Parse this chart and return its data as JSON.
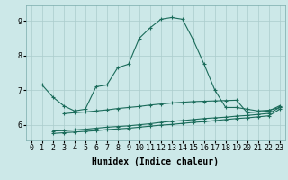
{
  "bg_color": "#cce8e8",
  "grid_color": "#aacccc",
  "line_color": "#1a6b5a",
  "xlabel": "Humidex (Indice chaleur)",
  "xlabel_fontsize": 7,
  "tick_fontsize": 6,
  "ylim": [
    5.55,
    9.45
  ],
  "xlim": [
    -0.5,
    23.5
  ],
  "yticks": [
    6,
    7,
    8,
    9
  ],
  "xticks": [
    0,
    1,
    2,
    3,
    4,
    5,
    6,
    7,
    8,
    9,
    10,
    11,
    12,
    13,
    14,
    15,
    16,
    17,
    18,
    19,
    20,
    21,
    22,
    23
  ],
  "series1_x": [
    1,
    2,
    3,
    4,
    5,
    6,
    7,
    8,
    9,
    10,
    11,
    12,
    13,
    14,
    15,
    16,
    17,
    18,
    19,
    20,
    21,
    22,
    23
  ],
  "series1_y": [
    7.15,
    6.8,
    6.55,
    6.4,
    6.45,
    7.1,
    7.15,
    7.65,
    7.75,
    8.5,
    8.8,
    9.05,
    9.1,
    9.05,
    8.45,
    7.75,
    7.0,
    6.5,
    6.5,
    6.45,
    6.4,
    6.42,
    6.5
  ],
  "series2_x": [
    3,
    4,
    5,
    6,
    7,
    8,
    9,
    10,
    11,
    12,
    13,
    14,
    15,
    16,
    17,
    18,
    19,
    20,
    21,
    22,
    23
  ],
  "series2_y": [
    6.32,
    6.35,
    6.37,
    6.4,
    6.43,
    6.47,
    6.5,
    6.53,
    6.57,
    6.6,
    6.63,
    6.65,
    6.67,
    6.68,
    6.69,
    6.7,
    6.71,
    6.35,
    6.37,
    6.4,
    6.55
  ],
  "series3_x": [
    2,
    3,
    4,
    5,
    6,
    7,
    8,
    9,
    10,
    11,
    12,
    13,
    14,
    15,
    16,
    17,
    18,
    19,
    20,
    21,
    22,
    23
  ],
  "series3_y": [
    5.82,
    5.83,
    5.85,
    5.87,
    5.9,
    5.93,
    5.95,
    5.97,
    6.0,
    6.03,
    6.07,
    6.1,
    6.12,
    6.15,
    6.18,
    6.2,
    6.22,
    6.25,
    6.27,
    6.3,
    6.33,
    6.5
  ],
  "series4_x": [
    2,
    3,
    4,
    5,
    6,
    7,
    8,
    9,
    10,
    11,
    12,
    13,
    14,
    15,
    16,
    17,
    18,
    19,
    20,
    21,
    22,
    23
  ],
  "series4_y": [
    5.75,
    5.77,
    5.79,
    5.81,
    5.83,
    5.86,
    5.88,
    5.9,
    5.93,
    5.96,
    5.99,
    6.01,
    6.04,
    6.07,
    6.09,
    6.12,
    6.15,
    6.18,
    6.2,
    6.23,
    6.26,
    6.45
  ]
}
